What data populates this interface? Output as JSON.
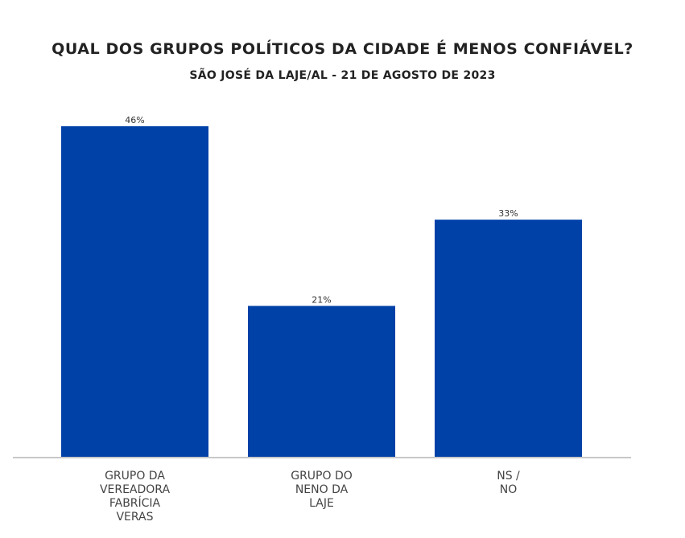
{
  "chart_data": {
    "type": "bar",
    "title": "QUAL DOS GRUPOS POLÍTICOS DA CIDADE É MENOS CONFIÁVEL?",
    "subtitle": "SÃO JOSÉ DA LAJE/AL - 21 DE AGOSTO DE 2023",
    "categories": [
      [
        "GRUPO DA",
        "VEREADORA",
        "FABRÍCIA",
        "VERAS"
      ],
      [
        "GRUPO DO",
        "NENO DA",
        "LAJE"
      ],
      [
        "NS /",
        "NO"
      ]
    ],
    "values": [
      46,
      21,
      33
    ],
    "data_labels": [
      "46%",
      "21%",
      "33%"
    ],
    "unit": "%",
    "ylim": [
      0,
      46
    ],
    "grid": false,
    "legend": "none",
    "bar_color": "#0041a8",
    "baseline_color": "#c8c8c8"
  }
}
